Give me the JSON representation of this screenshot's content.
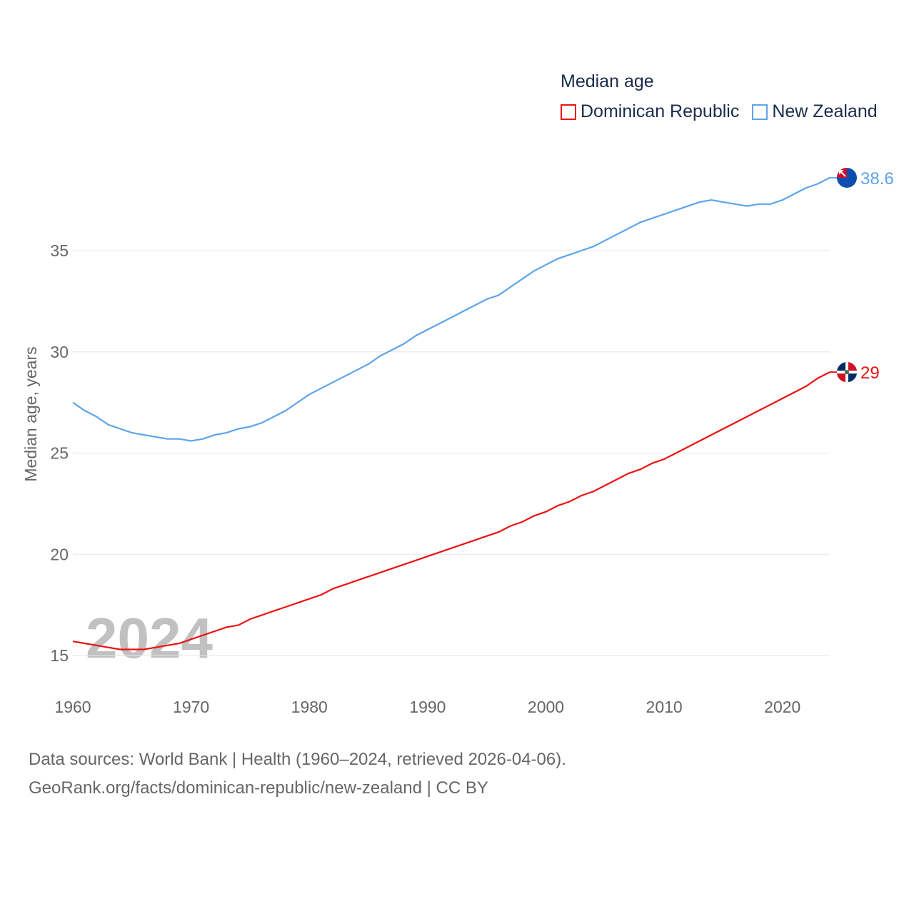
{
  "chart_data": {
    "type": "line",
    "title": "Median age",
    "ylabel": "Median age, years",
    "xlabel": "",
    "ylim": [
      13,
      40
    ],
    "xlim": [
      1960,
      2024
    ],
    "yticks": [
      15,
      20,
      25,
      30,
      35
    ],
    "xticks": [
      1960,
      1970,
      1980,
      1990,
      2000,
      2010,
      2020
    ],
    "grid": true,
    "legend_placement": "top-right",
    "year_label": "2024",
    "x": [
      1960,
      1961,
      1962,
      1963,
      1964,
      1965,
      1966,
      1967,
      1968,
      1969,
      1970,
      1971,
      1972,
      1973,
      1974,
      1975,
      1976,
      1977,
      1978,
      1979,
      1980,
      1981,
      1982,
      1983,
      1984,
      1985,
      1986,
      1987,
      1988,
      1989,
      1990,
      1991,
      1992,
      1993,
      1994,
      1995,
      1996,
      1997,
      1998,
      1999,
      2000,
      2001,
      2002,
      2003,
      2004,
      2005,
      2006,
      2007,
      2008,
      2009,
      2010,
      2011,
      2012,
      2013,
      2014,
      2015,
      2016,
      2017,
      2018,
      2019,
      2020,
      2021,
      2022,
      2023,
      2024
    ],
    "series": [
      {
        "name": "Dominican Republic",
        "color": "#ee1111",
        "end_label": "29",
        "values": [
          15.7,
          15.6,
          15.5,
          15.4,
          15.3,
          15.3,
          15.3,
          15.4,
          15.5,
          15.6,
          15.8,
          16.0,
          16.2,
          16.4,
          16.5,
          16.8,
          17.0,
          17.2,
          17.4,
          17.6,
          17.8,
          18.0,
          18.3,
          18.5,
          18.7,
          18.9,
          19.1,
          19.3,
          19.5,
          19.7,
          19.9,
          20.1,
          20.3,
          20.5,
          20.7,
          20.9,
          21.1,
          21.4,
          21.6,
          21.9,
          22.1,
          22.4,
          22.6,
          22.9,
          23.1,
          23.4,
          23.7,
          24.0,
          24.2,
          24.5,
          24.7,
          25.0,
          25.3,
          25.6,
          25.9,
          26.2,
          26.5,
          26.8,
          27.1,
          27.4,
          27.7,
          28.0,
          28.3,
          28.7,
          29.0
        ]
      },
      {
        "name": "New Zealand",
        "color": "#5ea4ea",
        "end_label": "38.6",
        "values": [
          27.5,
          27.1,
          26.8,
          26.4,
          26.2,
          26.0,
          25.9,
          25.8,
          25.7,
          25.7,
          25.6,
          25.7,
          25.9,
          26.0,
          26.2,
          26.3,
          26.5,
          26.8,
          27.1,
          27.5,
          27.9,
          28.2,
          28.5,
          28.8,
          29.1,
          29.4,
          29.8,
          30.1,
          30.4,
          30.8,
          31.1,
          31.4,
          31.7,
          32.0,
          32.3,
          32.6,
          32.8,
          33.2,
          33.6,
          34.0,
          34.3,
          34.6,
          34.8,
          35.0,
          35.2,
          35.5,
          35.8,
          36.1,
          36.4,
          36.6,
          36.8,
          37.0,
          37.2,
          37.4,
          37.5,
          37.4,
          37.3,
          37.2,
          37.3,
          37.3,
          37.5,
          37.8,
          38.1,
          38.3,
          38.6
        ]
      }
    ]
  },
  "footer": {
    "line1": "Data sources: World Bank | Health (1960–2024, retrieved 2026-04-06).",
    "line2": "GeoRank.org/facts/dominican-republic/new-zealand | CC BY"
  }
}
